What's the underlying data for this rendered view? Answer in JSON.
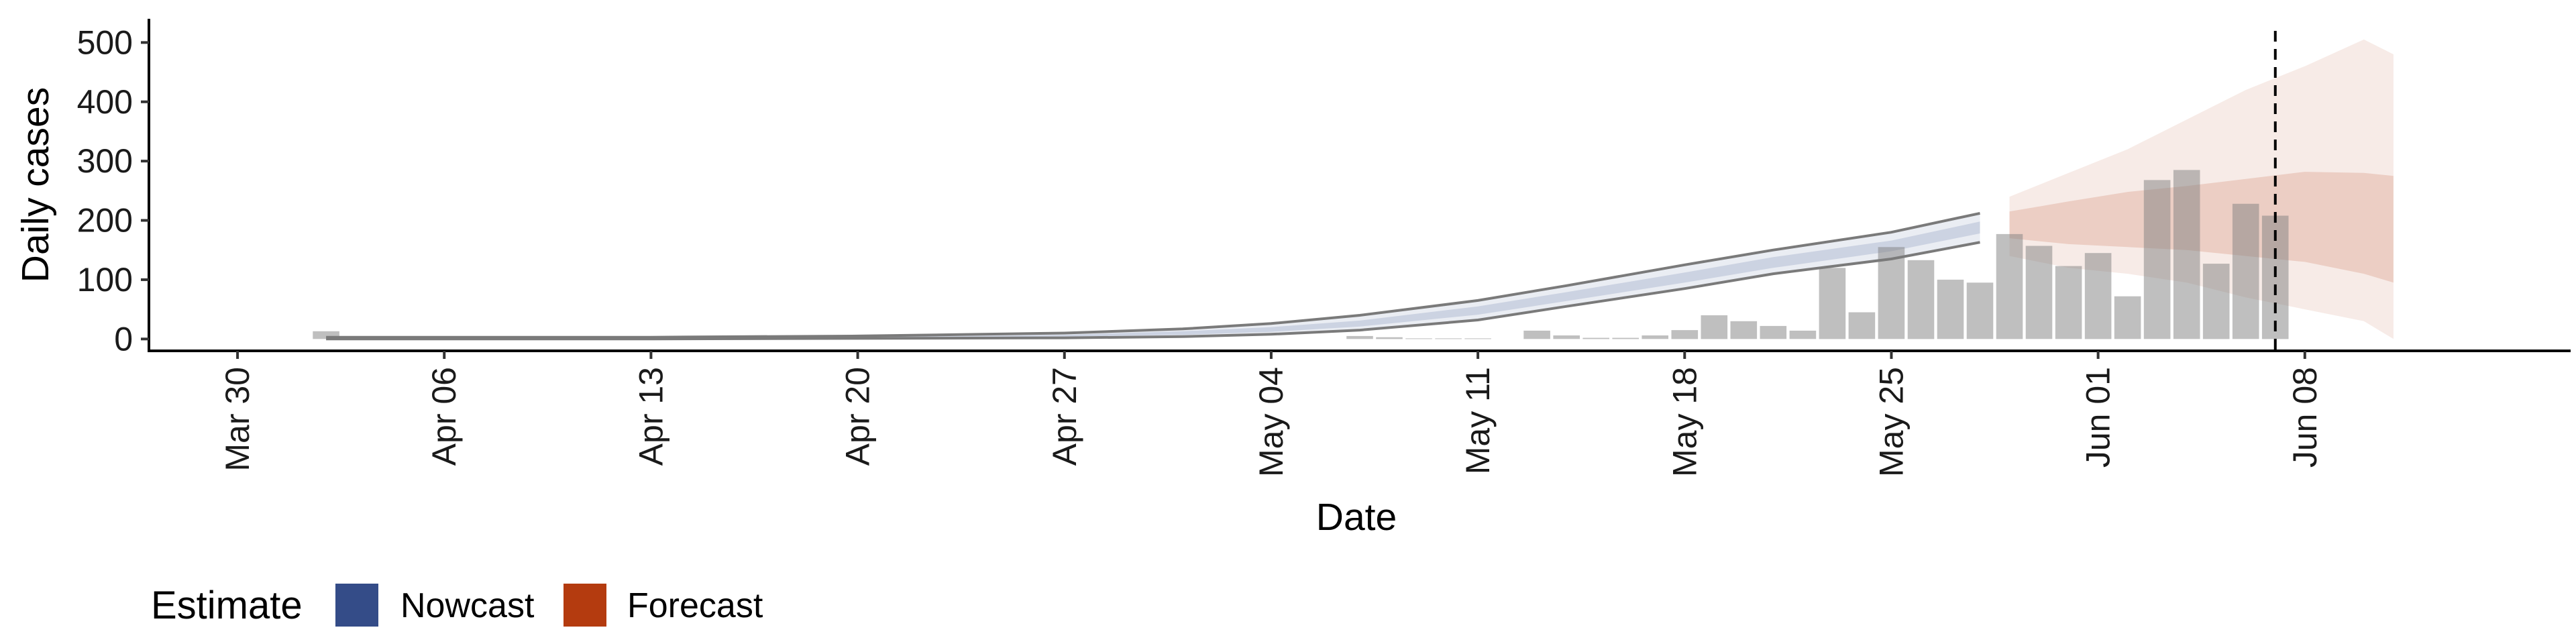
{
  "chart_data": {
    "type": "bar",
    "xlabel": "Date",
    "ylabel": "Daily cases",
    "ylim": [
      -20,
      540
    ],
    "yticks": [
      0,
      100,
      200,
      300,
      400,
      500
    ],
    "xrange": [
      "2020-03-27",
      "2020-06-17"
    ],
    "xticks": [
      {
        "date": "2020-03-30",
        "label": "Mar 30"
      },
      {
        "date": "2020-04-06",
        "label": "Apr 06"
      },
      {
        "date": "2020-04-13",
        "label": "Apr 13"
      },
      {
        "date": "2020-04-20",
        "label": "Apr 20"
      },
      {
        "date": "2020-04-27",
        "label": "Apr 27"
      },
      {
        "date": "2020-05-04",
        "label": "May 04"
      },
      {
        "date": "2020-05-11",
        "label": "May 11"
      },
      {
        "date": "2020-05-18",
        "label": "May 18"
      },
      {
        "date": "2020-05-25",
        "label": "May 25"
      },
      {
        "date": "2020-06-01",
        "label": "Jun 01"
      },
      {
        "date": "2020-06-08",
        "label": "Jun 08"
      }
    ],
    "vline_date": "2020-06-07",
    "observed_cases": [
      {
        "date": "2020-04-02",
        "value": 13
      },
      {
        "date": "2020-04-04",
        "value": 4
      },
      {
        "date": "2020-05-07",
        "value": 5
      },
      {
        "date": "2020-05-08",
        "value": 3
      },
      {
        "date": "2020-05-09",
        "value": 1
      },
      {
        "date": "2020-05-10",
        "value": 1
      },
      {
        "date": "2020-05-11",
        "value": 1
      },
      {
        "date": "2020-05-13",
        "value": 14
      },
      {
        "date": "2020-05-14",
        "value": 6
      },
      {
        "date": "2020-05-15",
        "value": 2
      },
      {
        "date": "2020-05-16",
        "value": 2
      },
      {
        "date": "2020-05-17",
        "value": 6
      },
      {
        "date": "2020-05-18",
        "value": 15
      },
      {
        "date": "2020-05-19",
        "value": 40
      },
      {
        "date": "2020-05-20",
        "value": 30
      },
      {
        "date": "2020-05-21",
        "value": 22
      },
      {
        "date": "2020-05-22",
        "value": 14
      },
      {
        "date": "2020-05-23",
        "value": 120
      },
      {
        "date": "2020-05-24",
        "value": 45
      },
      {
        "date": "2020-05-25",
        "value": 155
      },
      {
        "date": "2020-05-26",
        "value": 133
      },
      {
        "date": "2020-05-27",
        "value": 100
      },
      {
        "date": "2020-05-28",
        "value": 95
      },
      {
        "date": "2020-05-29",
        "value": 177
      },
      {
        "date": "2020-05-30",
        "value": 157
      },
      {
        "date": "2020-05-31",
        "value": 123
      },
      {
        "date": "2020-06-01",
        "value": 145
      },
      {
        "date": "2020-06-02",
        "value": 72
      },
      {
        "date": "2020-06-03",
        "value": 268
      },
      {
        "date": "2020-06-04",
        "value": 285
      },
      {
        "date": "2020-06-05",
        "value": 127
      },
      {
        "date": "2020-06-06",
        "value": 228
      },
      {
        "date": "2020-06-07",
        "value": 208
      }
    ],
    "series": [
      {
        "name": "Nowcast",
        "color": "#344C88",
        "points": [
          {
            "date": "2020-04-02",
            "lo90": 0,
            "lo50": 1,
            "hi50": 2,
            "hi90": 3
          },
          {
            "date": "2020-04-06",
            "lo90": 0,
            "lo50": 1,
            "hi50": 2,
            "hi90": 3
          },
          {
            "date": "2020-04-13",
            "lo90": 0,
            "lo50": 1,
            "hi50": 2,
            "hi90": 3
          },
          {
            "date": "2020-04-20",
            "lo90": 1,
            "lo50": 2,
            "hi50": 3,
            "hi90": 5
          },
          {
            "date": "2020-04-27",
            "lo90": 2,
            "lo50": 4,
            "hi50": 7,
            "hi90": 10
          },
          {
            "date": "2020-05-01",
            "lo90": 4,
            "lo50": 7,
            "hi50": 13,
            "hi90": 17
          },
          {
            "date": "2020-05-04",
            "lo90": 8,
            "lo50": 12,
            "hi50": 20,
            "hi90": 26
          },
          {
            "date": "2020-05-07",
            "lo90": 15,
            "lo50": 21,
            "hi50": 31,
            "hi90": 40
          },
          {
            "date": "2020-05-11",
            "lo90": 32,
            "lo50": 41,
            "hi50": 55,
            "hi90": 65
          },
          {
            "date": "2020-05-14",
            "lo90": 55,
            "lo50": 64,
            "hi50": 79,
            "hi90": 90
          },
          {
            "date": "2020-05-18",
            "lo90": 85,
            "lo50": 95,
            "hi50": 112,
            "hi90": 125
          },
          {
            "date": "2020-05-21",
            "lo90": 110,
            "lo50": 120,
            "hi50": 138,
            "hi90": 150
          },
          {
            "date": "2020-05-25",
            "lo90": 135,
            "lo50": 148,
            "hi50": 166,
            "hi90": 180
          },
          {
            "date": "2020-05-28",
            "lo90": 163,
            "lo50": 178,
            "hi50": 198,
            "hi90": 212
          }
        ]
      },
      {
        "name": "Forecast",
        "color": "#B43B0F",
        "points": [
          {
            "date": "2020-05-29",
            "lo90": 140,
            "lo50": 170,
            "hi50": 215,
            "hi90": 240
          },
          {
            "date": "2020-05-31",
            "lo90": 120,
            "lo50": 160,
            "hi50": 232,
            "hi90": 280
          },
          {
            "date": "2020-06-02",
            "lo90": 110,
            "lo50": 155,
            "hi50": 248,
            "hi90": 320
          },
          {
            "date": "2020-06-04",
            "lo90": 95,
            "lo50": 150,
            "hi50": 258,
            "hi90": 370
          },
          {
            "date": "2020-06-06",
            "lo90": 70,
            "lo50": 140,
            "hi50": 270,
            "hi90": 420
          },
          {
            "date": "2020-06-08",
            "lo90": 50,
            "lo50": 130,
            "hi50": 282,
            "hi90": 460
          },
          {
            "date": "2020-06-10",
            "lo90": 30,
            "lo50": 110,
            "hi50": 280,
            "hi90": 505
          },
          {
            "date": "2020-06-11",
            "lo90": 0,
            "lo50": 95,
            "hi50": 275,
            "hi90": 480
          }
        ]
      }
    ],
    "legend": {
      "title": "Estimate",
      "placement": "bottom-left",
      "items": [
        {
          "label": "Nowcast",
          "color": "#344C88"
        },
        {
          "label": "Forecast",
          "color": "#B43B0F"
        }
      ]
    }
  }
}
